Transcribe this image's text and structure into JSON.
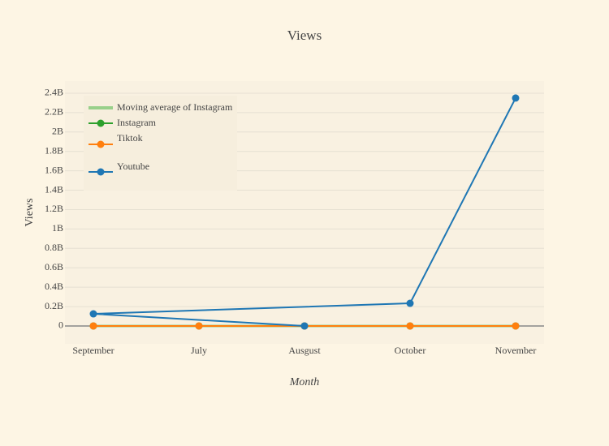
{
  "chart_data": {
    "type": "line",
    "title": "Views",
    "x_label": "Month",
    "y_label": "Views",
    "categories": [
      "September",
      "July",
      "Ausgust",
      "October",
      "November"
    ],
    "series": [
      {
        "name": "Moving average of Instagram",
        "color": "#98d08a",
        "x": [
          "September",
          "July",
          "Ausgust",
          "October",
          "November"
        ],
        "values": [
          0,
          0,
          0,
          0,
          0
        ],
        "markers": false
      },
      {
        "name": "Instagram",
        "color": "#2ca02c",
        "x": [
          "September",
          "July",
          "Ausgust",
          "October",
          "November"
        ],
        "values": [
          0,
          0,
          0,
          0,
          0
        ],
        "markers": true
      },
      {
        "name": "Tiktok",
        "color": "#ff7f0e",
        "x": [
          "September",
          "July",
          "Ausgust",
          "October",
          "November"
        ],
        "values": [
          0,
          0,
          0,
          0,
          0
        ],
        "markers": true
      },
      {
        "name": "Youtube",
        "color": "#1f77b4",
        "x": [
          "Ausgust",
          "September",
          "October",
          "November"
        ],
        "values": [
          0,
          125000000,
          234000000,
          2350000000
        ],
        "markers": true
      }
    ],
    "ylim": [
      -184000000,
      2525000000
    ],
    "yticks": [
      0,
      {
        "value": 200000000,
        "label": "0.2B"
      },
      {
        "value": 400000000,
        "label": "0.4B"
      },
      {
        "value": 600000000,
        "label": "0.6B"
      },
      {
        "value": 800000000,
        "label": "0.8B"
      },
      {
        "value": 1000000000,
        "label": "1B"
      },
      {
        "value": 1200000000,
        "label": "1.2B"
      },
      {
        "value": 1400000000,
        "label": "1.4B"
      },
      {
        "value": 1600000000,
        "label": "1.6B"
      },
      {
        "value": 1800000000,
        "label": "1.8B"
      },
      {
        "value": 2000000000,
        "label": "2B"
      },
      {
        "value": 2200000000,
        "label": "2.2B"
      },
      {
        "value": 2400000000,
        "label": "2.4B"
      }
    ],
    "grid": true,
    "legend": "top-left"
  }
}
